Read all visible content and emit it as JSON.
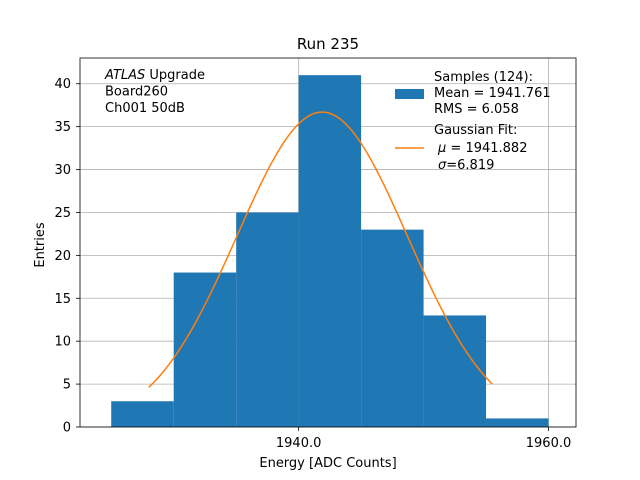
{
  "chart_data": {
    "type": "bar",
    "title": "Run 235",
    "xlabel": "Energy [ADC Counts]",
    "ylabel": "Entries",
    "xlim": [
      1922.5,
      1962.2
    ],
    "ylim": [
      0,
      43
    ],
    "x_ticks": [
      1940,
      1960
    ],
    "x_tick_labels": [
      "1940.0",
      "1960.0"
    ],
    "y_ticks": [
      0,
      5,
      10,
      15,
      20,
      25,
      30,
      35,
      40
    ],
    "y_tick_labels": [
      "0",
      "5",
      "10",
      "15",
      "20",
      "25",
      "30",
      "35",
      "40"
    ],
    "grid": true,
    "bins": [
      {
        "x0": 1925,
        "x1": 1930,
        "value": 3
      },
      {
        "x0": 1930,
        "x1": 1935,
        "value": 18
      },
      {
        "x0": 1935,
        "x1": 1940,
        "value": 25
      },
      {
        "x0": 1940,
        "x1": 1945,
        "value": 41
      },
      {
        "x0": 1945,
        "x1": 1950,
        "value": 23
      },
      {
        "x0": 1950,
        "x1": 1955,
        "value": 13
      },
      {
        "x0": 1955,
        "x1": 1960,
        "value": 1
      }
    ],
    "fit": {
      "type": "gaussian",
      "mu": 1941.882,
      "sigma": 6.819,
      "amplitude": 36.7,
      "x_range": [
        1928,
        1955.5
      ]
    },
    "colors": {
      "hist": "#1f77b4",
      "fit": "#ff7f0e",
      "grid": "#b0b0b0"
    },
    "annotation": {
      "lines": [
        {
          "italic": "ATLAS",
          "rest": " Upgrade"
        },
        {
          "italic": "",
          "rest": " Board260"
        },
        {
          "italic": "",
          "rest": " Ch001 50dB"
        }
      ],
      "position": "top-left"
    },
    "legend": {
      "position": "top-right",
      "hist_header": "Samples (124):",
      "hist_lines": [
        " Mean = 1941.761",
        " RMS = 6.058"
      ],
      "fit_header": "Gaussian Fit:",
      "fit_mu_value": " = 1941.882",
      "fit_sigma_value": "=6.819"
    }
  }
}
